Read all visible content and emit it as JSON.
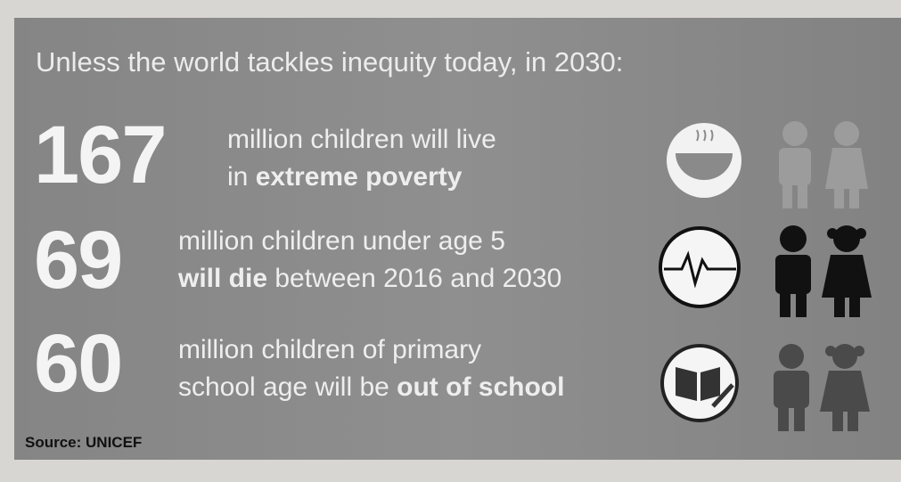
{
  "title": "Unless the world tackles inequity today, in 2030:",
  "rows": [
    {
      "number": "167",
      "line1": [
        {
          "text": "million children will live",
          "bold": false
        }
      ],
      "line2": [
        {
          "text": "in ",
          "bold": false
        },
        {
          "text": "extreme poverty",
          "bold": true
        }
      ]
    },
    {
      "number": "69",
      "line1": [
        {
          "text": "million children under age 5",
          "bold": false
        }
      ],
      "line2": [
        {
          "text": "will die",
          "bold": true
        },
        {
          "text": " between 2016 and 2030",
          "bold": false
        }
      ]
    },
    {
      "number": "60",
      "line1": [
        {
          "text": "million children of primary",
          "bold": false
        }
      ],
      "line2": [
        {
          "text": "school age will be ",
          "bold": false
        },
        {
          "text": "out of school",
          "bold": true
        }
      ]
    }
  ],
  "source": "Source: UNICEF"
}
